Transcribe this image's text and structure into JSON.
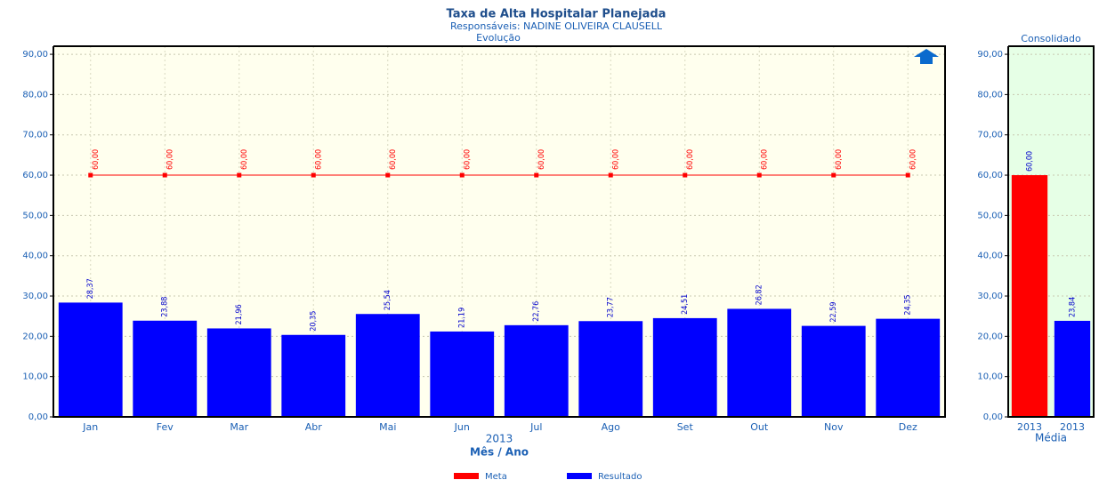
{
  "chart_data": [
    {
      "type": "bar",
      "title": "Taxa de Alta Hospitalar Planejada",
      "subtitle": "Responsáveis: NADINE OLIVEIRA CLAUSELL",
      "subtitle2": "Evolução",
      "categories": [
        "Jan",
        "Fev",
        "Mar",
        "Abr",
        "Mai",
        "Jun",
        "Jul",
        "Ago",
        "Set",
        "Out",
        "Nov",
        "Dez"
      ],
      "x_group_label": "2013",
      "xlabel": "Mês / Ano",
      "series": [
        {
          "name": "Meta",
          "type": "line",
          "color": "#ff0000",
          "values": [
            60,
            60,
            60,
            60,
            60,
            60,
            60,
            60,
            60,
            60,
            60,
            60
          ],
          "value_labels": [
            "60,00",
            "60,00",
            "60,00",
            "60,00",
            "60,00",
            "60,00",
            "60,00",
            "60,00",
            "60,00",
            "60,00",
            "60,00",
            "60,00"
          ]
        },
        {
          "name": "Resultado",
          "type": "bar",
          "color": "#0000ff",
          "values": [
            28.37,
            23.88,
            21.96,
            20.35,
            25.54,
            21.19,
            22.76,
            23.77,
            24.51,
            26.82,
            22.59,
            24.35
          ],
          "value_labels": [
            "28,37",
            "23,88",
            "21,96",
            "20,35",
            "25,54",
            "21,19",
            "22,76",
            "23,77",
            "24,51",
            "26,82",
            "22,59",
            "24,35"
          ]
        }
      ],
      "ylim": [
        0,
        92
      ],
      "yticks": [
        {
          "value": 0,
          "label": "0,00"
        },
        {
          "value": 10,
          "label": "10,00"
        },
        {
          "value": 20,
          "label": "20,00"
        },
        {
          "value": 30,
          "label": "30,00"
        },
        {
          "value": 40,
          "label": "40,00"
        },
        {
          "value": 50,
          "label": "50,00"
        },
        {
          "value": 60,
          "label": "60,00"
        },
        {
          "value": 70,
          "label": "70,00"
        },
        {
          "value": 80,
          "label": "80,00"
        },
        {
          "value": 90,
          "label": "90,00"
        }
      ],
      "grid": true,
      "background": "#ffffee",
      "legend": "bottom"
    },
    {
      "type": "bar",
      "title": "Consolidado",
      "categories": [
        "2013",
        "2013"
      ],
      "xlabel": "Média",
      "series": [
        {
          "type": "bar",
          "colors": [
            "#ff0000",
            "#0000ff"
          ],
          "values": [
            60,
            23.84
          ],
          "value_labels": [
            "60,00",
            "23,84"
          ]
        }
      ],
      "ylim": [
        0,
        92
      ],
      "yticks": [
        {
          "value": 0,
          "label": "0,00"
        },
        {
          "value": 10,
          "label": "10,00"
        },
        {
          "value": 20,
          "label": "20,00"
        },
        {
          "value": 30,
          "label": "30,00"
        },
        {
          "value": 40,
          "label": "40,00"
        },
        {
          "value": 50,
          "label": "50,00"
        },
        {
          "value": 60,
          "label": "60,00"
        },
        {
          "value": 70,
          "label": "70,00"
        },
        {
          "value": 80,
          "label": "80,00"
        },
        {
          "value": 90,
          "label": "90,00"
        }
      ],
      "grid": true,
      "background": "#e6ffe6"
    }
  ]
}
